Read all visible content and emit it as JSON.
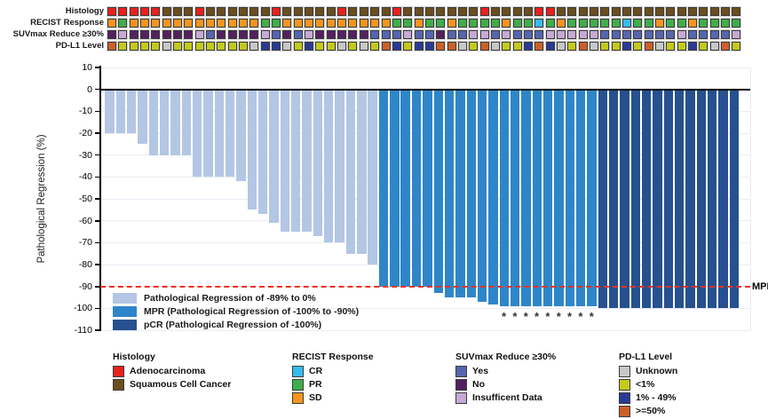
{
  "tracks": {
    "rows": [
      {
        "label": "Histology",
        "codes": [
          "ADC",
          "ADC",
          "ADC",
          "ADC",
          "ADC",
          "SCC",
          "SCC",
          "SCC",
          "ADC",
          "SCC",
          "SCC",
          "SCC",
          "SCC",
          "SCC",
          "SCC",
          "ADC",
          "SCC",
          "SCC",
          "SCC",
          "SCC",
          "SCC",
          "ADC",
          "SCC",
          "SCC",
          "SCC",
          "SCC",
          "ADC",
          "SCC",
          "SCC",
          "SCC",
          "SCC",
          "SCC",
          "SCC",
          "SCC",
          "ADC",
          "SCC",
          "SCC",
          "SCC",
          "SCC",
          "ADC",
          "ADC",
          "SCC",
          "SCC",
          "SCC",
          "SCC",
          "SCC",
          "SCC",
          "SCC",
          "SCC",
          "SCC",
          "SCC",
          "SCC",
          "SCC",
          "SCC",
          "SCC",
          "SCC",
          "SCC",
          "SCC"
        ]
      },
      {
        "label": "RECIST Response",
        "codes": [
          "SD",
          "PR",
          "SD",
          "SD",
          "SD",
          "SD",
          "SD",
          "SD",
          "SD",
          "SD",
          "SD",
          "SD",
          "SD",
          "SD",
          "PR",
          "PR",
          "SD",
          "SD",
          "SD",
          "SD",
          "SD",
          "SD",
          "SD",
          "SD",
          "SD",
          "SD",
          "PR",
          "PR",
          "SD",
          "PR",
          "PR",
          "SD",
          "PR",
          "PR",
          "PR",
          "PR",
          "SD",
          "PR",
          "PR",
          "CR",
          "PR",
          "SD",
          "PR",
          "PR",
          "PR",
          "PR",
          "PR",
          "CR",
          "PR",
          "PR",
          "SD",
          "PR",
          "PR",
          "SD",
          "PR",
          "PR",
          "PR",
          "PR"
        ]
      },
      {
        "label": "SUVmax Reduce ≥30%",
        "codes": [
          "NO",
          "INS",
          "NO",
          "NO",
          "NO",
          "NO",
          "NO",
          "NO",
          "INS",
          "YES",
          "NO",
          "NO",
          "NO",
          "NO",
          "INS",
          "YES",
          "NO",
          "YES",
          "INS",
          "NO",
          "NO",
          "NO",
          "NO",
          "NO",
          "YES",
          "YES",
          "YES",
          "INS",
          "YES",
          "YES",
          "NO",
          "YES",
          "YES",
          "INS",
          "INS",
          "YES",
          "INS",
          "YES",
          "YES",
          "YES",
          "INS",
          "INS",
          "INS",
          "INS",
          "INS",
          "YES",
          "YES",
          "YES",
          "YES",
          "YES",
          "YES",
          "YES",
          "INS",
          "YES",
          "YES",
          "YES",
          "YES",
          "INS"
        ]
      },
      {
        "label": "PD-L1 Level",
        "codes": [
          "GE50",
          "LT1",
          "LT1",
          "LT1",
          "LT1",
          "UNK",
          "LT1",
          "LT1",
          "LT1",
          "LT1",
          "LT1",
          "LT1",
          "LT1",
          "UNK",
          "P149",
          "P149",
          "UNK",
          "LT1",
          "P149",
          "LT1",
          "LT1",
          "UNK",
          "LT1",
          "UNK",
          "LT1",
          "GE50",
          "P149",
          "LT1",
          "P149",
          "P149",
          "GE50",
          "GE50",
          "UNK",
          "LT1",
          "GE50",
          "UNK",
          "LT1",
          "LT1",
          "P149",
          "GE50",
          "P149",
          "UNK",
          "LT1",
          "GE50",
          "UNK",
          "LT1",
          "LT1",
          "P149",
          "LT1",
          "GE50",
          "UNK",
          "LT1",
          "LT1",
          "P149",
          "LT1",
          "UNK",
          "GE50",
          "LT1"
        ]
      }
    ]
  },
  "palette": {
    "ADC": "#e8211d",
    "SCC": "#6b4e1e",
    "CR": "#35bcee",
    "PR": "#3fae49",
    "SD": "#f7941e",
    "YES": "#5566af",
    "NO": "#552060",
    "INS": "#c6a9d6",
    "UNK": "#c8c8c8",
    "LT1": "#c3ca1c",
    "P149": "#2a3a96",
    "GE50": "#ce5f27"
  },
  "chart_data": {
    "type": "bar",
    "title": "",
    "ylabel": "Pathological Regression (%)",
    "ylim": [
      -110,
      10
    ],
    "yticks": [
      10,
      0,
      -10,
      -20,
      -30,
      -40,
      -50,
      -60,
      -70,
      -80,
      -90,
      -100,
      -110
    ],
    "n_patients": 58,
    "values": [
      -20,
      -20,
      -20,
      -25,
      -30,
      -30,
      -30,
      -30,
      -40,
      -40,
      -40,
      -40,
      -42,
      -55,
      -57,
      -61,
      -65,
      -65,
      -65,
      -67,
      -70,
      -70,
      -75,
      -75,
      -80,
      -90,
      -90,
      -90,
      -90,
      -90,
      -93,
      -95,
      -95,
      -95,
      -97,
      -98,
      -99,
      -99,
      -99,
      -99,
      -99,
      -99,
      -99,
      -99,
      -99,
      -100,
      -100,
      -100,
      -100,
      -100,
      -100,
      -100,
      -100,
      -100,
      -100,
      -100,
      -100,
      -100
    ],
    "groups": [
      "reg",
      "reg",
      "reg",
      "reg",
      "reg",
      "reg",
      "reg",
      "reg",
      "reg",
      "reg",
      "reg",
      "reg",
      "reg",
      "reg",
      "reg",
      "reg",
      "reg",
      "reg",
      "reg",
      "reg",
      "reg",
      "reg",
      "reg",
      "reg",
      "reg",
      "mpr",
      "mpr",
      "mpr",
      "mpr",
      "mpr",
      "mpr",
      "mpr",
      "mpr",
      "mpr",
      "mpr",
      "mpr",
      "mpr",
      "mpr",
      "mpr",
      "mpr",
      "mpr",
      "mpr",
      "mpr",
      "mpr",
      "mpr",
      "pcr",
      "pcr",
      "pcr",
      "pcr",
      "pcr",
      "pcr",
      "pcr",
      "pcr",
      "pcr",
      "pcr",
      "pcr",
      "pcr",
      "pcr"
    ],
    "asterisk_indices": [
      36,
      37,
      38,
      39,
      40,
      41,
      42,
      43,
      44
    ],
    "asterisk_glyph": "*",
    "bar_colors": {
      "reg": "#b3c6e4",
      "mpr": "#2e86c8",
      "pcr": "#26518e"
    },
    "mpr_line_value": -90,
    "mpr_line_color": "#ee3124",
    "mpr_label": "MPR",
    "legend": [
      "Pathological Regression of -89% to 0%",
      "MPR (Pathological Regression of -100% to -90%)",
      "pCR (Pathological Regression of -100%)"
    ],
    "legend_position": "lower-left"
  },
  "bottom_legend": {
    "groups": [
      {
        "header": "Histology",
        "items": [
          {
            "label": "Adenocarcinoma",
            "code": "ADC"
          },
          {
            "label": "Squamous Cell Cancer",
            "code": "SCC"
          }
        ]
      },
      {
        "header": "RECIST Response",
        "items": [
          {
            "label": "CR",
            "code": "CR"
          },
          {
            "label": "PR",
            "code": "PR"
          },
          {
            "label": "SD",
            "code": "SD"
          }
        ]
      },
      {
        "header": "SUVmax Reduce ≥30%",
        "items": [
          {
            "label": "Yes",
            "code": "YES"
          },
          {
            "label": "No",
            "code": "NO"
          },
          {
            "label": "Insufficent Data",
            "code": "INS"
          }
        ]
      },
      {
        "header": "PD-L1 Level",
        "items": [
          {
            "label": "Unknown",
            "code": "UNK"
          },
          {
            "label": "<1%",
            "code": "LT1"
          },
          {
            "label": "1% - 49%",
            "code": "P149"
          },
          {
            "label": ">=50%",
            "code": "GE50"
          }
        ]
      }
    ]
  }
}
